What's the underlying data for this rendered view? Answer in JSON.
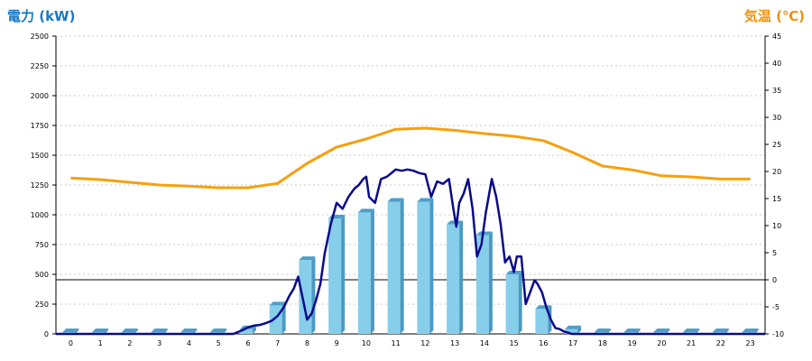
{
  "chart_data": {
    "type": "bar",
    "ylabel_left": "電力 (kW)",
    "ylabel_right": "気温 (℃)",
    "categories": [
      "0",
      "1",
      "2",
      "3",
      "4",
      "5",
      "6",
      "7",
      "8",
      "9",
      "10",
      "11",
      "12",
      "13",
      "14",
      "15",
      "16",
      "17",
      "18",
      "19",
      "20",
      "21",
      "22",
      "23"
    ],
    "ylim_left": [
      0,
      2500
    ],
    "yticks_left": [
      0,
      250,
      500,
      750,
      1000,
      1250,
      1500,
      1750,
      2000,
      2250,
      2500
    ],
    "ylim_right": [
      -10,
      45
    ],
    "yticks_right": [
      -10,
      -5,
      0,
      5,
      10,
      15,
      20,
      25,
      30,
      35,
      40,
      45
    ],
    "grid": true,
    "series": [
      {
        "kind": "bar",
        "axis": "left",
        "values": [
          15,
          15,
          15,
          15,
          15,
          15,
          40,
          240,
          620,
          970,
          1020,
          1110,
          1110,
          920,
          830,
          500,
          210,
          40,
          15,
          15,
          15,
          15,
          15,
          15
        ]
      },
      {
        "kind": "line",
        "axis": "left",
        "x": [
          5.5,
          5.8,
          6.0,
          6.2,
          6.4,
          6.6,
          6.8,
          7.0,
          7.2,
          7.4,
          7.55,
          7.7,
          7.85,
          8.0,
          8.15,
          8.3,
          8.45,
          8.6,
          8.8,
          9.0,
          9.2,
          9.4,
          9.6,
          9.75,
          9.9,
          10.0,
          10.1,
          10.3,
          10.5,
          10.7,
          10.9,
          11.0,
          11.2,
          11.4,
          11.6,
          11.8,
          12.0,
          12.2,
          12.4,
          12.6,
          12.8,
          12.95,
          13.05,
          13.15,
          13.3,
          13.45,
          13.6,
          13.75,
          13.9,
          14.05,
          14.25,
          14.4,
          14.55,
          14.7,
          14.85,
          15.0,
          15.1,
          15.25,
          15.4,
          15.55,
          15.7,
          15.8,
          15.95,
          16.1,
          16.25,
          16.4,
          16.55,
          16.7,
          16.85,
          16.95,
          17.1,
          17.3
        ],
        "values": [
          0,
          30,
          55,
          70,
          75,
          90,
          110,
          150,
          220,
          320,
          380,
          480,
          300,
          120,
          170,
          280,
          420,
          680,
          920,
          1100,
          1050,
          1150,
          1220,
          1250,
          1300,
          1320,
          1150,
          1100,
          1300,
          1320,
          1360,
          1380,
          1370,
          1380,
          1370,
          1350,
          1340,
          1150,
          1280,
          1260,
          1300,
          1050,
          900,
          1100,
          1180,
          1300,
          1050,
          650,
          750,
          1020,
          1300,
          1150,
          920,
          600,
          650,
          520,
          650,
          650,
          250,
          350,
          450,
          420,
          350,
          220,
          120,
          50,
          40,
          20,
          10,
          0,
          0,
          0
        ]
      },
      {
        "kind": "line",
        "axis": "right",
        "values": [
          18.8,
          18.5,
          18.0,
          17.5,
          17.3,
          17.0,
          17.0,
          17.8,
          21.5,
          24.5,
          26.0,
          27.8,
          28.0,
          27.6,
          27.0,
          26.5,
          25.7,
          23.5,
          21.0,
          20.3,
          19.2,
          19.0,
          18.6,
          18.6
        ]
      }
    ]
  },
  "colors": {
    "bar_front": "#87ceeb",
    "bar_side": "#4a9ac2",
    "bar_top": "#4f9ec7",
    "power_line": "#0a0a8c",
    "temp_line": "#f5a00f",
    "title_left": "#1a78c2",
    "title_right": "#f0900a",
    "grid": "#c8c8c8",
    "axis": "#000000"
  }
}
